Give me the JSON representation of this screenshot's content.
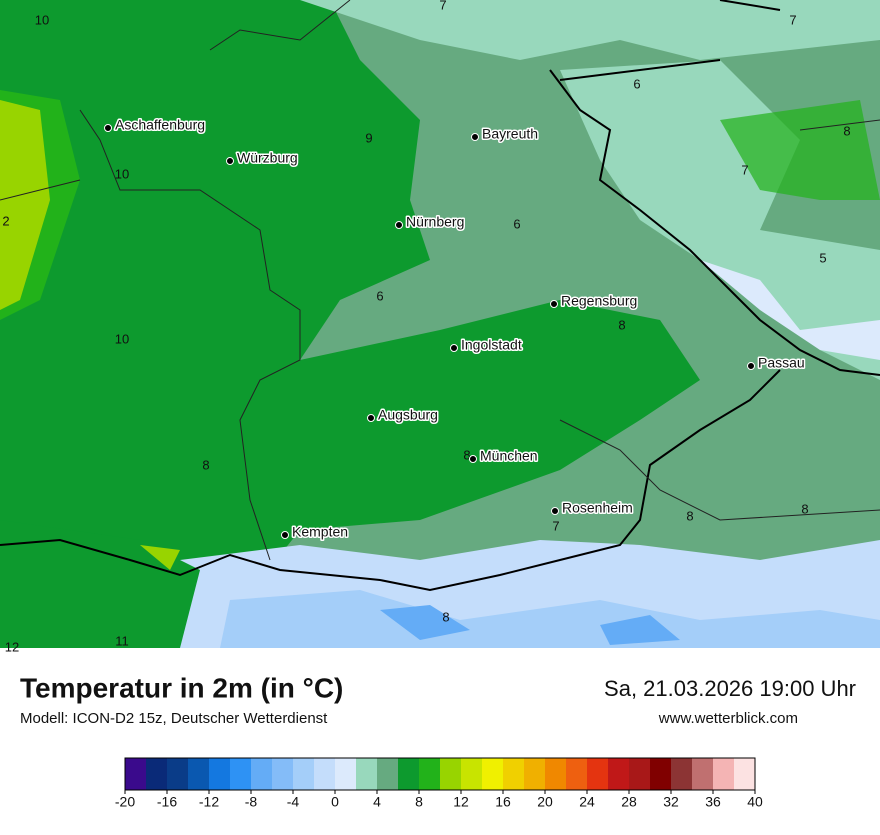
{
  "header": {
    "title": "Temperatur in 2m (in °C)",
    "subtitle": "Modell: ICON-D2 15z, Deutscher Wetterdienst",
    "date": "Sa, 21.03.2026 19:00 Uhr",
    "website": "www.wetterblick.com"
  },
  "map": {
    "cities": [
      "Aschaffenburg",
      "Würzburg",
      "Bayreuth",
      "Nürnberg",
      "Regensburg",
      "Ingolstadt",
      "Passau",
      "Augsburg",
      "München",
      "Rosenheim",
      "Kempten"
    ],
    "isotherm_labels": [
      10,
      7,
      7,
      6,
      8,
      9,
      10,
      7,
      6,
      5,
      6,
      8,
      10,
      8,
      8,
      7,
      8,
      8,
      8,
      12,
      11,
      2
    ]
  },
  "legend": {
    "colors": [
      "#3a0a8c",
      "#0a2a78",
      "#0a3c88",
      "#0a58b0",
      "#1478e0",
      "#2e92f4",
      "#64acf6",
      "#84bcf8",
      "#a4cef9",
      "#c4ddfb",
      "#dceafc",
      "#98d8bc",
      "#66aa80",
      "#0d9a2e",
      "#22b21a",
      "#98d400",
      "#c8e400",
      "#f0f000",
      "#f0d000",
      "#f0b000",
      "#f08800",
      "#ee6010",
      "#e43410",
      "#c01818",
      "#a81818",
      "#800000",
      "#8c3434",
      "#c07070",
      "#f4b4b4",
      "#fce2e2"
    ],
    "ticks": [
      -20,
      -16,
      -12,
      -8,
      -4,
      0,
      4,
      8,
      12,
      16,
      20,
      24,
      28,
      32,
      36,
      40
    ]
  }
}
